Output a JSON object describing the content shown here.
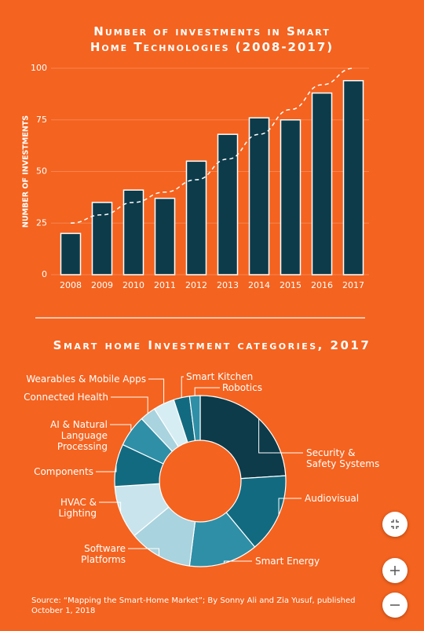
{
  "chart_data": [
    {
      "type": "bar",
      "title": "Number of investments in Smart\nHome Technologies (2008-2017)",
      "y_label": "NUMBER OF INVESTMENTS",
      "categories": [
        "2008",
        "2009",
        "2010",
        "2011",
        "2012",
        "2013",
        "2014",
        "2015",
        "2016",
        "2017"
      ],
      "values": [
        20,
        35,
        41,
        37,
        55,
        68,
        76,
        75,
        88,
        94
      ],
      "color": "#0d3b4a",
      "trend": {
        "values": [
          25,
          29,
          35,
          40,
          46,
          56,
          68,
          80,
          92,
          100
        ],
        "color": "#ffffff"
      },
      "ylim": [
        0,
        100
      ],
      "yticks": [
        0,
        25,
        50,
        75,
        100
      ],
      "grid": true
    },
    {
      "type": "donut",
      "title": "Smart home Investment categories, 2017",
      "categories": [
        "Security &\nSafety Systems",
        "Audiovisual",
        "Smart Energy",
        "Software\nPlatforms",
        "HVAC &\nLighting",
        "Components",
        "AI & Natural\nLanguage\nProcessing",
        "Connected Health",
        "Wearables & Mobile Apps",
        "Smart Kitchen",
        "Robotics"
      ],
      "values": [
        24,
        15,
        13,
        12,
        10,
        8,
        6,
        3,
        4,
        3,
        2
      ],
      "colors": [
        "#0d3b4a",
        "#126a80",
        "#2f8fa6",
        "#a9d3de",
        "#c9e4ec",
        "#126a80",
        "#2f8fa6",
        "#a9d3de",
        "#d6edf3",
        "#126a80",
        "#2f8fa6"
      ]
    }
  ],
  "source": "Source: “Mapping the Smart-Home Market”; By Sonny Ali and Zia Yusuf, published\nOctober 1, 2018"
}
